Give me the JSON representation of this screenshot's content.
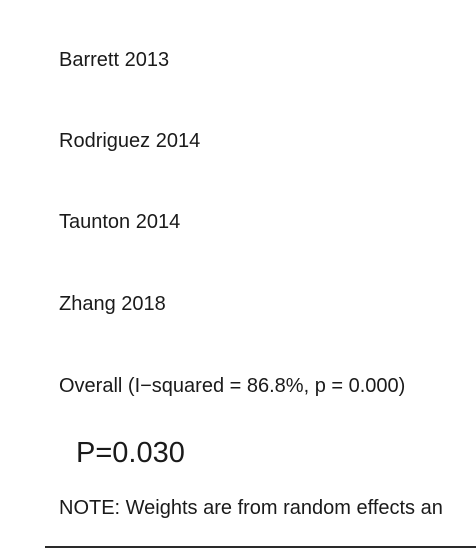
{
  "chart_data": {
    "type": "forest",
    "studies": [
      "Barrett 2013",
      "Rodriguez 2014",
      "Taunton 2014",
      "Zhang 2018"
    ],
    "overall_label": "Overall  (I−squared = 86.8%, p = 0.000)",
    "heterogeneity": {
      "i_squared_percent": 86.8,
      "p": 0.0
    },
    "p_value_label": "P=0.030",
    "note": "NOTE: Weights are from random effects an"
  }
}
